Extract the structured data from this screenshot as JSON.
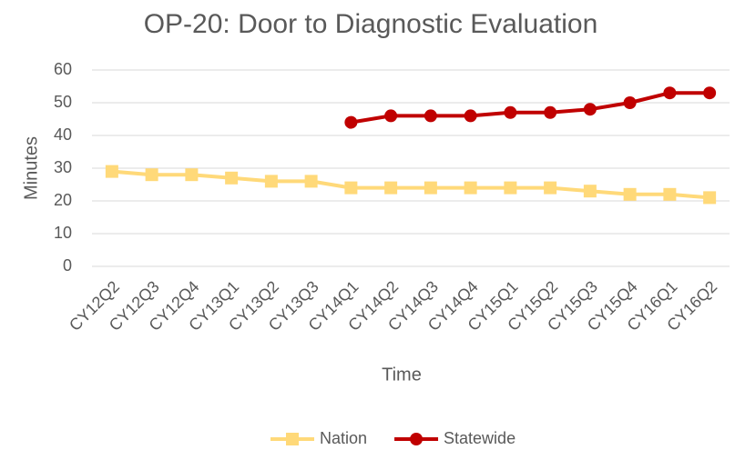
{
  "chart_data": {
    "type": "line",
    "title": "OP-20: Door to Diagnostic Evaluation",
    "x_label": "Time",
    "y_label": "Minutes",
    "categories": [
      "CY12Q2",
      "CY12Q3",
      "CY12Q4",
      "CY13Q1",
      "CY13Q2",
      "CY13Q3",
      "CY14Q1",
      "CY14Q2",
      "CY14Q3",
      "CY14Q4",
      "CY15Q1",
      "CY15Q2",
      "CY15Q3",
      "CY15Q4",
      "CY16Q1",
      "CY16Q2"
    ],
    "series": [
      {
        "name": "Nation",
        "color": "#ffd979",
        "marker": "square",
        "values": [
          29,
          28,
          28,
          27,
          26,
          26,
          24,
          24,
          24,
          24,
          24,
          24,
          23,
          22,
          22,
          21
        ]
      },
      {
        "name": "Statewide",
        "color": "#c00000",
        "marker": "circle",
        "values": [
          null,
          null,
          null,
          null,
          null,
          null,
          44,
          46,
          46,
          46,
          47,
          47,
          48,
          50,
          53,
          53
        ]
      }
    ],
    "ylim": [
      0,
      60
    ],
    "yticks": [
      0,
      10,
      20,
      30,
      40,
      50,
      60
    ],
    "grid": true,
    "legend": "bottom"
  }
}
